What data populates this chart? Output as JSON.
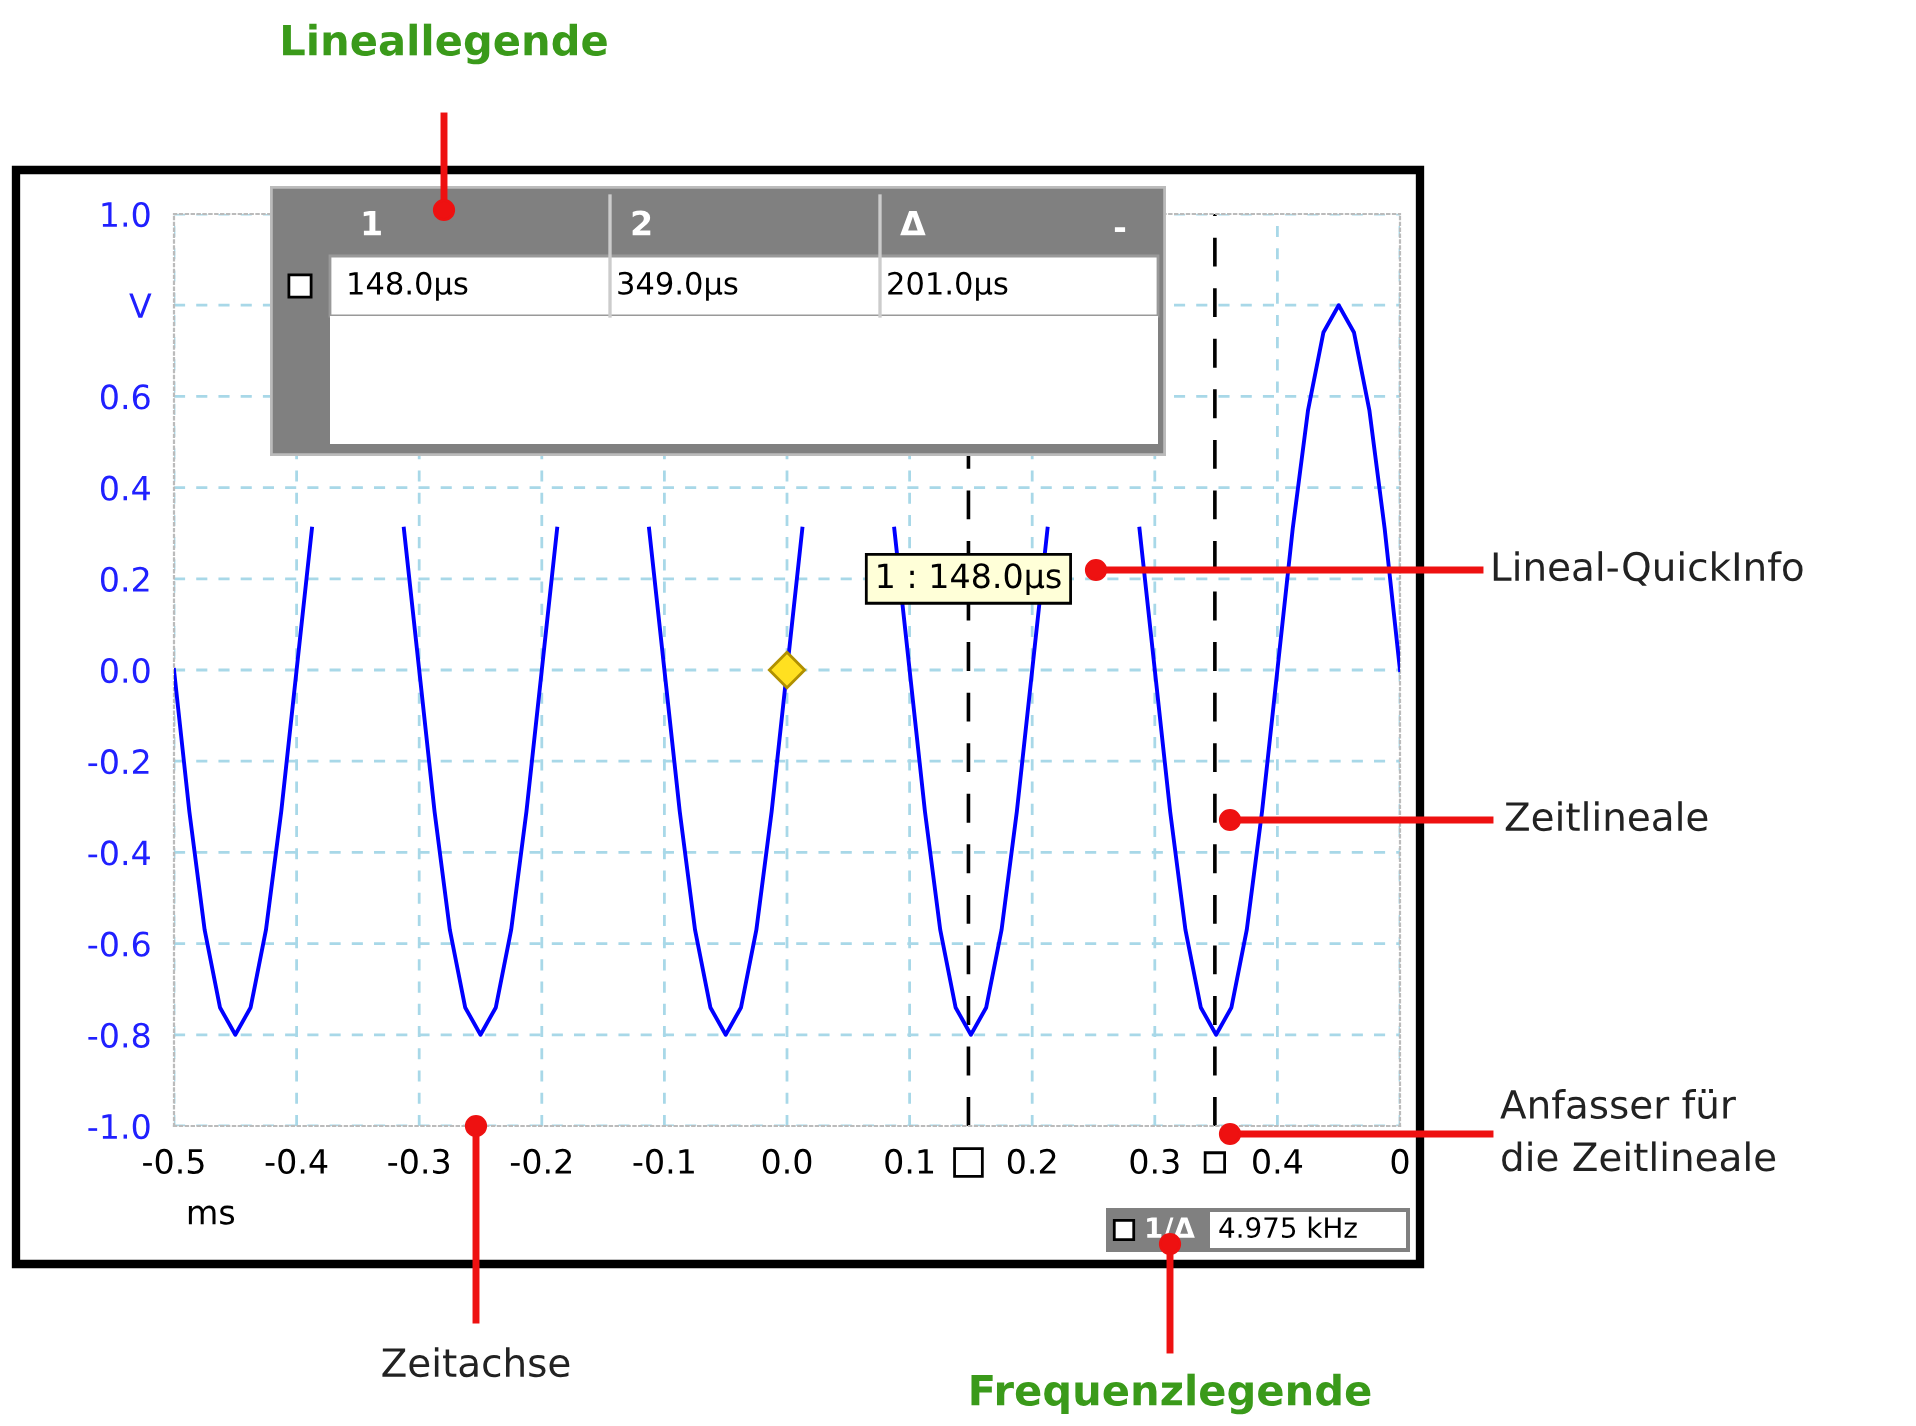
{
  "chart_data": {
    "type": "line",
    "xlabel": "ms",
    "x": [
      -0.5,
      -0.4875,
      -0.475,
      -0.4625,
      -0.45,
      -0.4375,
      -0.425,
      -0.4125,
      -0.4,
      -0.3875,
      -0.375,
      -0.3625,
      -0.35,
      -0.3375,
      -0.325,
      -0.3125,
      -0.3,
      -0.2875,
      -0.275,
      -0.2625,
      -0.25,
      -0.2375,
      -0.225,
      -0.2125,
      -0.2,
      -0.1875,
      -0.175,
      -0.1625,
      -0.15,
      -0.1375,
      -0.125,
      -0.1125,
      -0.1,
      -0.0875,
      -0.075,
      -0.0625,
      -0.05,
      -0.0375,
      -0.025,
      -0.0125,
      0,
      0.0125,
      0.025,
      0.0375,
      0.05,
      0.0625,
      0.075,
      0.0875,
      0.1,
      0.1125,
      0.125,
      0.1375,
      0.15,
      0.1625,
      0.175,
      0.1875,
      0.2,
      0.2125,
      0.225,
      0.2375,
      0.25,
      0.2625,
      0.275,
      0.2875,
      0.3,
      0.3125,
      0.325,
      0.3375,
      0.35,
      0.3625,
      0.375,
      0.3875,
      0.4,
      0.4125,
      0.425,
      0.4375,
      0.45,
      0.4625,
      0.475,
      0.4875,
      0.5
    ],
    "series": [
      {
        "color": "#0000ff",
        "values": [
          0,
          -0.31,
          -0.57,
          -0.74,
          -0.8,
          -0.74,
          -0.57,
          -0.31,
          0,
          0.31,
          null,
          null,
          null,
          null,
          null,
          0.31,
          0,
          -0.31,
          -0.57,
          -0.74,
          -0.8,
          -0.74,
          -0.57,
          -0.31,
          0,
          0.31,
          null,
          null,
          null,
          null,
          null,
          0.31,
          0,
          -0.31,
          -0.57,
          -0.74,
          -0.8,
          -0.74,
          -0.57,
          -0.31,
          0,
          0.31,
          null,
          null,
          null,
          null,
          null,
          0.31,
          0,
          -0.31,
          -0.57,
          -0.74,
          -0.8,
          -0.74,
          -0.57,
          -0.31,
          0,
          0.31,
          null,
          null,
          null,
          null,
          null,
          0.31,
          0,
          -0.31,
          -0.57,
          -0.74,
          -0.8,
          -0.74,
          -0.57,
          -0.31,
          0,
          0.31,
          0.57,
          0.74,
          0.8,
          0.74,
          0.57,
          0.31,
          0
        ]
      }
    ],
    "xlim": [
      -0.5,
      0.5
    ],
    "ylim": [
      -1.0,
      1.0
    ],
    "xticks": [
      -0.5,
      -0.4,
      -0.3,
      -0.2,
      -0.1,
      {
        "value": 0,
        "label": "0.0"
      },
      0.1,
      0.2,
      0.3,
      0.4,
      {
        "value": 0.5,
        "label": "0"
      }
    ],
    "yticks": [
      {
        "value": -1,
        "label": "-1.0"
      },
      -0.8,
      -0.6,
      -0.4,
      -0.2,
      {
        "value": 0,
        "label": "0.0"
      },
      0.2,
      0.4,
      0.6,
      {
        "value": 0.8,
        "label": "V"
      },
      {
        "value": 1,
        "label": "1.0"
      }
    ],
    "grid": true,
    "marker": "none",
    "line_style": "solid",
    "ref_lines": [
      {
        "axis": "x",
        "value": 0.148,
        "color": "#000000",
        "line_style": "dashed"
      },
      {
        "axis": "x",
        "value": 0.349,
        "color": "#000000",
        "line_style": "dashed"
      }
    ],
    "annotations": [
      "Lineallegende",
      "Lineal-QuickInfo",
      "Zeitlineale",
      "Anfasser für\ndie Zeitlineale",
      "Zeitachse",
      "Frequenzlegende",
      {
        "text": "1 : 148.0µs",
        "x": 0.148,
        "y": 0.2
      },
      "1",
      "2",
      "Δ",
      "-",
      "148.0µs",
      "349.0µs",
      "201.0µs",
      "1/Δ",
      "4.975 kHz"
    ]
  }
}
